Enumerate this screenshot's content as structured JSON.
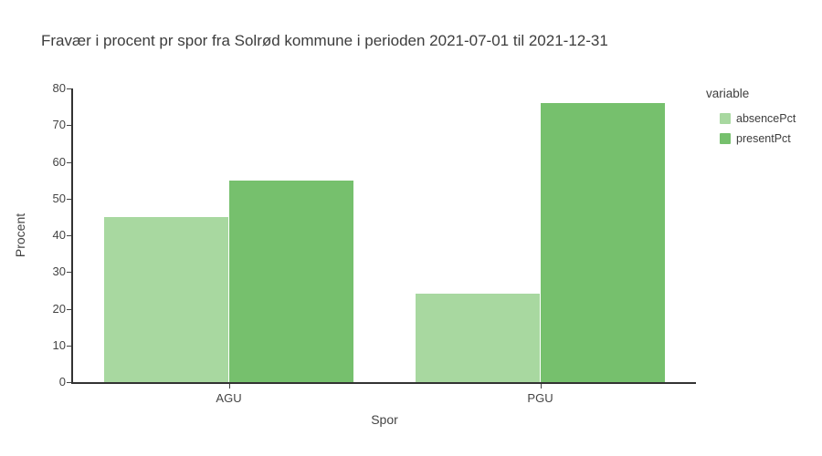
{
  "chart_data": {
    "type": "bar",
    "title": "Fravær i procent pr spor fra Solrød kommune i perioden 2021-07-01 til 2021-12-31",
    "categories": [
      "AGU",
      "PGU"
    ],
    "series": [
      {
        "name": "absencePct",
        "color": "#a8d8a0",
        "values": [
          45,
          24
        ]
      },
      {
        "name": "presentPct",
        "color": "#76c06d",
        "values": [
          55,
          76
        ]
      }
    ],
    "xlabel": "Spor",
    "ylabel": "Procent",
    "ylim": [
      0,
      80
    ],
    "yticks": [
      0,
      10,
      20,
      30,
      40,
      50,
      60,
      70,
      80
    ],
    "grid": false,
    "legend": {
      "title": "variable",
      "position": "right"
    },
    "colors": {
      "axis_line": "#333333",
      "tick_text": "#444444",
      "title_text": "#3d3d3d",
      "background": "#ffffff"
    }
  }
}
